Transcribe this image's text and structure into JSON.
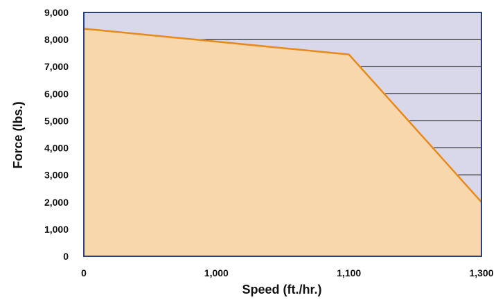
{
  "chart_data": {
    "type": "area",
    "xlabel": "Speed (ft./hr.)",
    "ylabel": "Force (lbs.)",
    "ylim": [
      0,
      9000
    ],
    "x_ticks": [
      "0",
      "1,000",
      "1,100",
      "1,300"
    ],
    "y_ticks": [
      "0",
      "1,000",
      "2,000",
      "3,000",
      "4,000",
      "5,000",
      "6,000",
      "7,000",
      "8,000",
      "9,000"
    ],
    "y_tick_values": [
      0,
      1000,
      2000,
      3000,
      4000,
      5000,
      6000,
      7000,
      8000,
      9000
    ],
    "series": [
      {
        "points": [
          {
            "x": "0",
            "y": 8400
          },
          {
            "x": "1,100",
            "y": 7450
          },
          {
            "x": "1,300",
            "y": 2000
          }
        ]
      }
    ],
    "grid": true,
    "colors": {
      "plot_background": "#d8d8ea",
      "area_fill": "#f9d7ad",
      "line": "#e8891c",
      "border": "#2a3f7e",
      "grid": "#000000"
    }
  }
}
